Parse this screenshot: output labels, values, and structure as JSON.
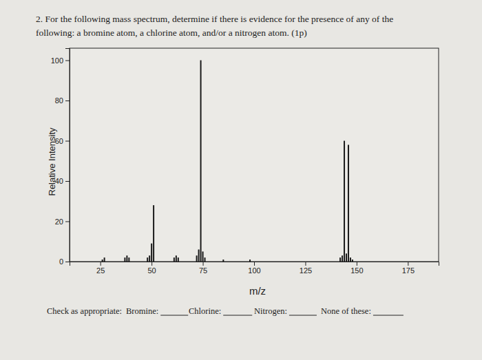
{
  "chart_data": {
    "type": "bar",
    "title": [
      "2. For the following mass spectrum, determine if there is evidence for the presence of any of the",
      "following: a bromine atom, a chlorine atom, and/or a nitrogen atom. (1p)"
    ],
    "xlabel": "m/z",
    "ylabel": "Relative Intensity",
    "x": [
      26,
      27,
      37,
      38,
      39,
      48,
      49,
      50,
      51,
      61,
      62,
      63,
      72,
      73,
      74,
      75,
      76,
      85,
      98,
      142,
      143,
      144,
      145,
      146,
      147,
      148
    ],
    "values": [
      1,
      2,
      2,
      3,
      2,
      2,
      3,
      9,
      28,
      2,
      3,
      2,
      3,
      6,
      100,
      5,
      2,
      1,
      1,
      2,
      3,
      60,
      4,
      58,
      2,
      1
    ],
    "color": "#1a1a1a",
    "xlim": [
      10,
      190
    ],
    "xticks": [
      25,
      50,
      75,
      100,
      125,
      150,
      175
    ],
    "ylim": [
      0,
      106
    ],
    "yticks": [
      0,
      20,
      40,
      60,
      80,
      100
    ],
    "grid": false,
    "annotations": [
      "Check as appropriate:",
      "Bromine:",
      "Chlorine:",
      "Nitrogen:",
      "None of these:"
    ]
  }
}
